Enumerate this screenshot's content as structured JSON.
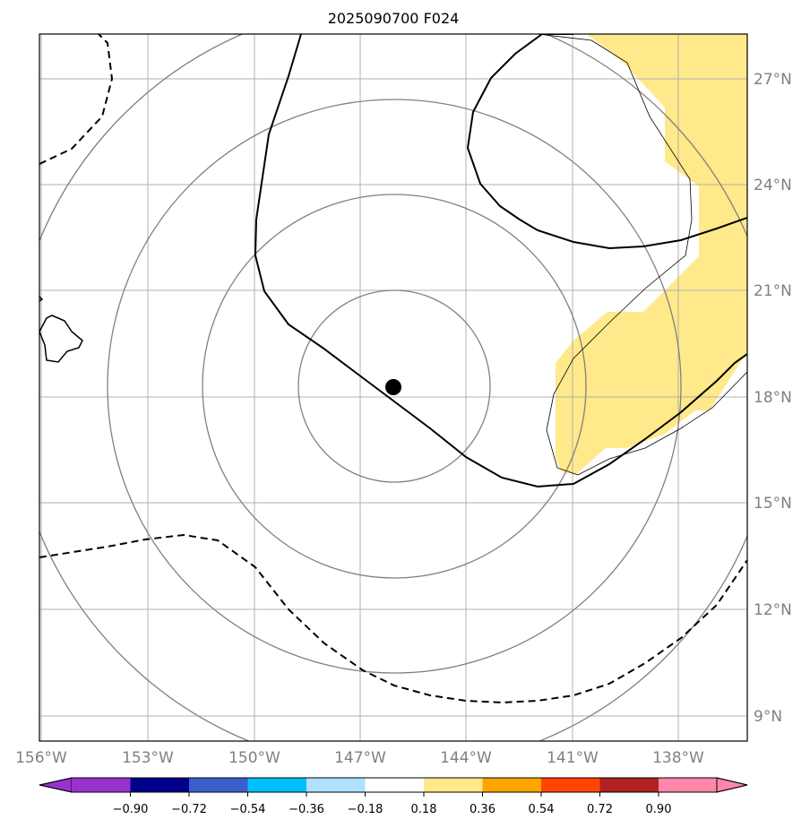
{
  "title": "2025090700 F024",
  "map": {
    "lon_labels": [
      "156°W",
      "153°W",
      "150°W",
      "147°W",
      "144°W",
      "141°W",
      "138°W"
    ],
    "lat_labels": [
      "27°N",
      "24°N",
      "21°N",
      "18°N",
      "15°N",
      "12°N",
      "9°N"
    ],
    "storm_center": {
      "lon": -146.1,
      "lat": 18.3
    },
    "shading_color": "#ffe98a"
  },
  "colorbar": {
    "ticks": [
      "−0.90",
      "−0.72",
      "−0.54",
      "−0.36",
      "−0.18",
      "0.18",
      "0.36",
      "0.54",
      "0.72",
      "0.90"
    ],
    "colors": [
      "#9932cc",
      "#00008b",
      "#3a5fcd",
      "#00bfff",
      "#b0e2ff",
      "#ffffff",
      "#ffe98a",
      "#ffa500",
      "#ff4500",
      "#b22222",
      "#ff88aa"
    ]
  }
}
